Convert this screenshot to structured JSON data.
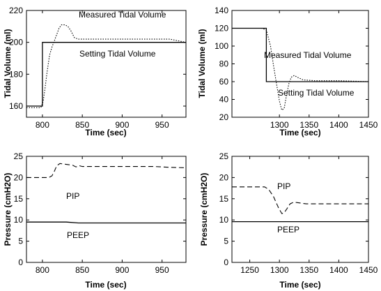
{
  "chart_data": [
    {
      "type": "line",
      "xlabel": "Time (sec)",
      "ylabel": "Tidal Volume (ml)",
      "xlim": [
        780,
        980
      ],
      "ylim": [
        153,
        220
      ],
      "xticks": [
        800,
        850,
        900,
        950
      ],
      "yticks": [
        160,
        180,
        200,
        220
      ],
      "series": [
        {
          "name": "Measured Tidal Volume",
          "style": "dotted",
          "x": [
            780,
            790,
            798,
            801,
            803,
            806,
            809,
            812,
            815,
            818,
            821,
            824,
            828,
            832,
            836,
            840,
            845,
            850,
            860,
            880,
            900,
            920,
            940,
            950,
            960,
            970,
            980
          ],
          "y": [
            159,
            159,
            159,
            163,
            170,
            182,
            192,
            197,
            201,
            205,
            209,
            211,
            211,
            210,
            207,
            203,
            202,
            202,
            202,
            202,
            202,
            202,
            202,
            202,
            202,
            201,
            200
          ]
        },
        {
          "name": "Setting Tidal Volume",
          "style": "solid",
          "x": [
            780,
            800,
            800,
            980
          ],
          "y": [
            160,
            160,
            200,
            200
          ]
        }
      ]
    },
    {
      "type": "line",
      "xlabel": "Time (sec)",
      "ylabel": "Tidal Volume (ml)",
      "xlim": [
        1220,
        1450
      ],
      "ylim": [
        20,
        140
      ],
      "xticks": [
        1300,
        1350,
        1400,
        1450
      ],
      "yticks": [
        20,
        40,
        60,
        80,
        100,
        120,
        140
      ],
      "series": [
        {
          "name": "Measured Tidal Volume",
          "style": "dotted",
          "x": [
            1220,
            1270,
            1278,
            1285,
            1290,
            1295,
            1300,
            1304,
            1308,
            1312,
            1316,
            1320,
            1325,
            1330,
            1340,
            1360,
            1400,
            1450
          ],
          "y": [
            120,
            120,
            118,
            100,
            78,
            58,
            38,
            28,
            30,
            45,
            58,
            65,
            67,
            65,
            62,
            61,
            61,
            60
          ]
        },
        {
          "name": "Setting Tidal Volume",
          "style": "solid",
          "x": [
            1220,
            1278,
            1278,
            1450
          ],
          "y": [
            120,
            120,
            60,
            60
          ]
        }
      ]
    },
    {
      "type": "line",
      "xlabel": "Time (sec)",
      "ylabel": "Pressure (cmH2O)",
      "xlim": [
        780,
        980
      ],
      "ylim": [
        0,
        25
      ],
      "xticks": [
        800,
        850,
        900,
        950
      ],
      "yticks": [
        0,
        5,
        10,
        15,
        20,
        25
      ],
      "series": [
        {
          "name": "PIP",
          "style": "dashed",
          "x": [
            780,
            808,
            812,
            815,
            818,
            822,
            830,
            838,
            842,
            846,
            850,
            860,
            900,
            940,
            960,
            980
          ],
          "y": [
            20,
            20,
            20.4,
            21.5,
            22.8,
            23.3,
            23.1,
            22.9,
            22.5,
            22.8,
            22.6,
            22.6,
            22.6,
            22.6,
            22.4,
            22.3
          ]
        },
        {
          "name": "PEEP",
          "style": "solid",
          "x": [
            780,
            830,
            845,
            980
          ],
          "y": [
            9.5,
            9.5,
            9.3,
            9.3
          ]
        }
      ]
    },
    {
      "type": "line",
      "xlabel": "Time (sec)",
      "ylabel": "Pressure (cmH2O)",
      "xlim": [
        1220,
        1450
      ],
      "ylim": [
        0,
        25
      ],
      "xticks": [
        1250,
        1300,
        1350,
        1400,
        1450
      ],
      "yticks": [
        0,
        5,
        10,
        15,
        20,
        25
      ],
      "series": [
        {
          "name": "PIP",
          "style": "dashed",
          "x": [
            1220,
            1275,
            1282,
            1290,
            1298,
            1304,
            1308,
            1312,
            1318,
            1324,
            1330,
            1345,
            1400,
            1450
          ],
          "y": [
            17.8,
            17.8,
            17.2,
            15.5,
            13,
            11.5,
            11.7,
            12.5,
            13.8,
            14.2,
            14.1,
            13.8,
            13.8,
            13.8
          ]
        },
        {
          "name": "PEEP",
          "style": "solid",
          "x": [
            1220,
            1450
          ],
          "y": [
            9.6,
            9.6
          ]
        }
      ]
    }
  ],
  "annotations": [
    {
      "panel": 0,
      "text": "Measured Tidal Volume"
    },
    {
      "panel": 0,
      "text": "Setting Tidal Volume"
    },
    {
      "panel": 1,
      "text": "Measured Tidal Volume"
    },
    {
      "panel": 1,
      "text": "Setting Tidal Volume"
    },
    {
      "panel": 2,
      "text": "PIP"
    },
    {
      "panel": 2,
      "text": "PEEP"
    },
    {
      "panel": 3,
      "text": "PIP"
    },
    {
      "panel": 3,
      "text": "PEEP"
    }
  ]
}
